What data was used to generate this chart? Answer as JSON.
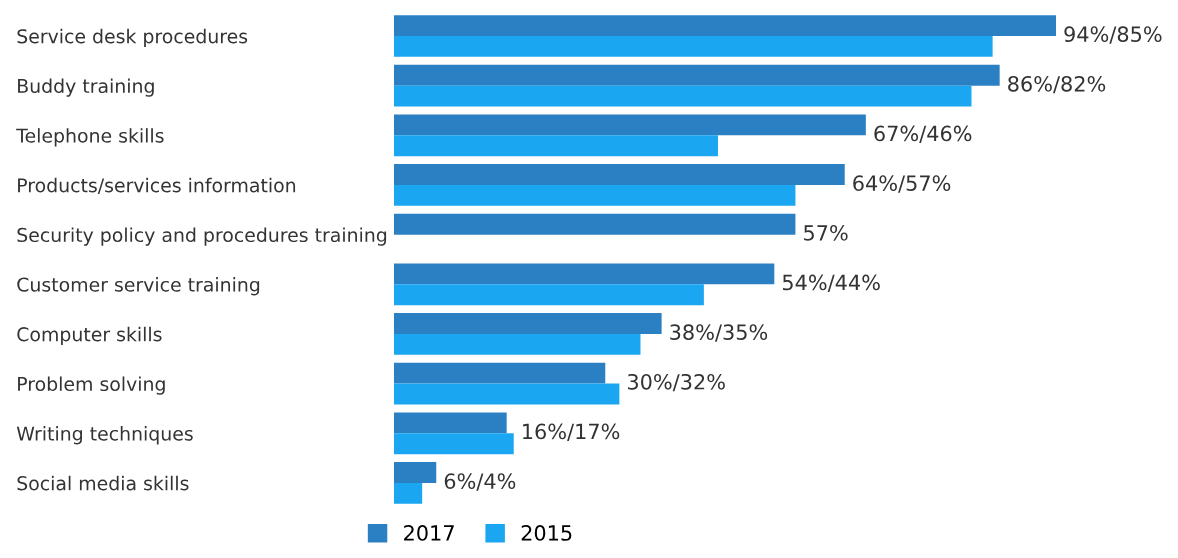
{
  "chart_data": {
    "type": "bar",
    "orientation": "horizontal",
    "categories": [
      "Service desk procedures",
      "Buddy training",
      "Telephone skills",
      "Products/services information",
      "Security policy and procedures training",
      "Customer service training",
      "Computer skills",
      "Problem solving",
      "Writing techniques",
      "Social media skills"
    ],
    "series": [
      {
        "name": "2017",
        "color": "#2b80c3",
        "values": [
          94,
          86,
          67,
          64,
          57,
          54,
          38,
          30,
          16,
          6
        ],
        "value_labels": [
          "94%/85%",
          "86%/82%",
          "67%/46%",
          "64%/57%",
          "57%",
          "54%/44%",
          "38%/35%",
          "30%/32%",
          "16%/17%",
          "6%/4%"
        ]
      },
      {
        "name": "2015",
        "color": "#1aa6f0",
        "values": [
          85,
          82,
          46,
          57,
          null,
          44,
          35,
          32,
          17,
          4
        ]
      }
    ],
    "tick_labels": "y",
    "grid": false,
    "legend": "bottom"
  }
}
